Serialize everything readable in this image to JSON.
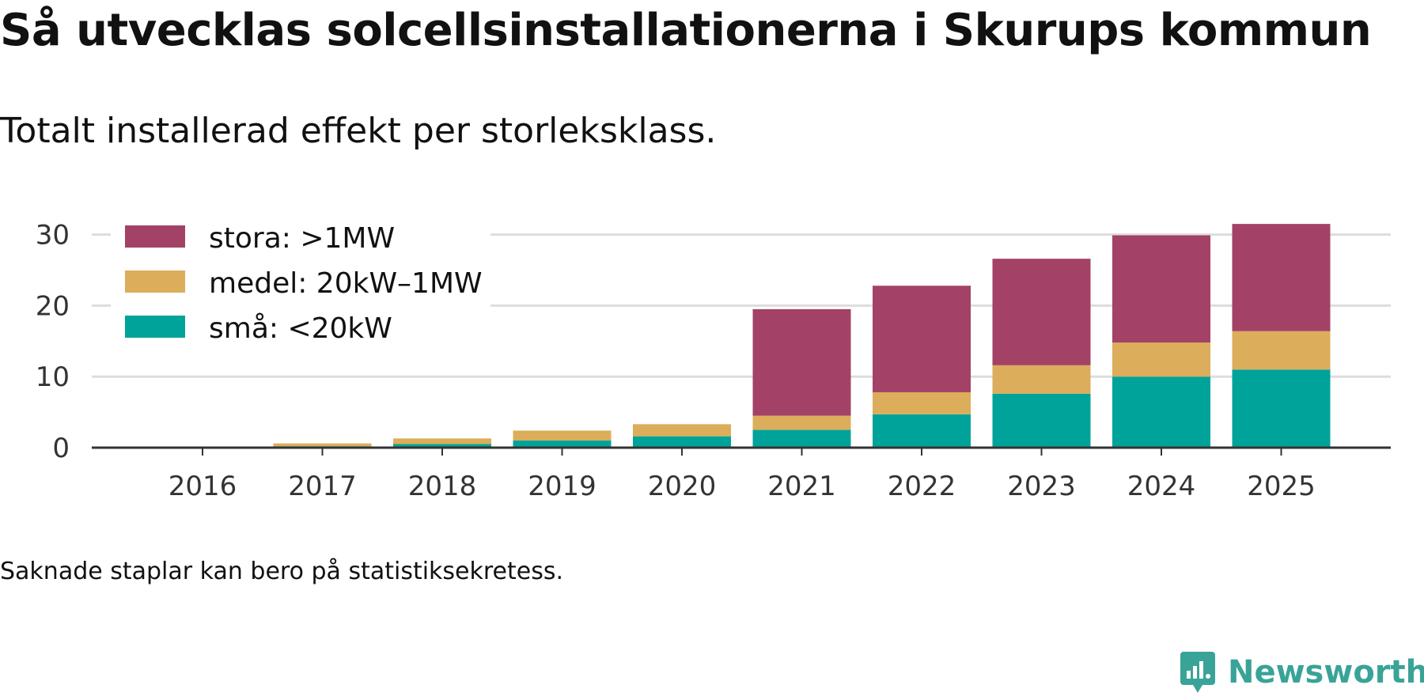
{
  "header": {
    "title": "Så utvecklas solcellsinstallationerna i Skurups kommun",
    "subtitle": "Totalt installerad effekt per storleksklass."
  },
  "footer": {
    "note": "Saknade staplar kan bero på statistiksekretess.",
    "brand": "Newsworthy",
    "brand_icon": "newsworthy-logo-icon"
  },
  "colors": {
    "small": "#00a39a",
    "medium": "#dcad5a",
    "large": "#a34266",
    "grid": "#dddddd",
    "axis": "#333333",
    "brand": "#3aa398"
  },
  "chart_data": {
    "type": "bar",
    "stacked": true,
    "title": "Så utvecklas solcellsinstallationerna i Skurups kommun",
    "subtitle": "Totalt installerad effekt per storleksklass.",
    "xlabel": "",
    "ylabel": "",
    "categories": [
      "2016",
      "2017",
      "2018",
      "2019",
      "2020",
      "2021",
      "2022",
      "2023",
      "2024",
      "2025"
    ],
    "series": [
      {
        "name": "små: <20kW",
        "color": "#00a39a",
        "values": [
          0.05,
          0.2,
          0.5,
          1.0,
          1.6,
          2.5,
          4.7,
          7.6,
          10.0,
          11.0
        ]
      },
      {
        "name": "medel: 20kW–1MW",
        "color": "#dcad5a",
        "values": [
          0.0,
          0.4,
          0.8,
          1.4,
          1.7,
          2.0,
          3.1,
          4.0,
          4.8,
          5.4
        ]
      },
      {
        "name": "stora: >1MW",
        "color": "#a34266",
        "values": [
          0.0,
          0.0,
          0.0,
          0.0,
          0.0,
          15.0,
          15.0,
          15.0,
          15.1,
          15.1
        ]
      }
    ],
    "legend_order": [
      "stora: >1MW",
      "medel: 20kW–1MW",
      "små: <20kW"
    ],
    "legend_position": "top-left",
    "yticks": [
      0,
      10,
      20,
      30
    ],
    "ylim": [
      0,
      31.5
    ],
    "grid": true
  }
}
